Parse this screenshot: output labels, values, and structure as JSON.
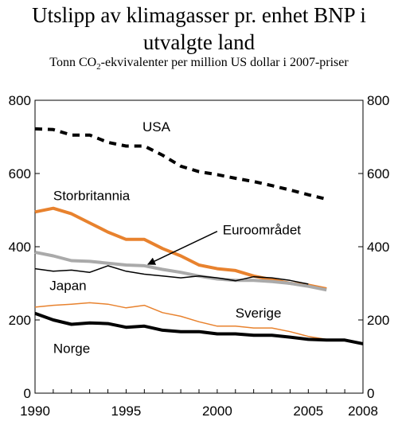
{
  "header": {
    "title_line1": "Utslipp av klimagasser pr. enhet BNP i",
    "title_line2": "utvalgte land",
    "subtitle_pre": "Tonn CO",
    "subtitle_sub": "2",
    "subtitle_post": "-ekvivalenter per million US dollar i 2007-priser"
  },
  "chart_data": {
    "type": "line",
    "ylim": [
      0,
      800
    ],
    "y_ticks": [
      0,
      200,
      400,
      600,
      800
    ],
    "xlim": [
      1990,
      2008
    ],
    "x_tick_labels": [
      {
        "value": 1990,
        "label": "1990"
      },
      {
        "value": 1995,
        "label": "1995"
      },
      {
        "value": 2000,
        "label": "2000"
      },
      {
        "value": 2005,
        "label": "2005"
      },
      {
        "value": 2008,
        "label": "2008"
      }
    ],
    "grid": false,
    "series": [
      {
        "name": "USA",
        "color": "#000000",
        "style": "dashed",
        "width": 4,
        "x": [
          1990,
          1991,
          1992,
          1993,
          1994,
          1995,
          1996,
          1997,
          1998,
          1999,
          2000,
          2001,
          2002,
          2003,
          2004,
          2005,
          2006
        ],
        "y": [
          722,
          720,
          705,
          705,
          685,
          675,
          675,
          650,
          620,
          605,
          597,
          587,
          578,
          567,
          555,
          542,
          530
        ]
      },
      {
        "name": "Storbritannia",
        "color": "#e8822e",
        "style": "solid",
        "width": 4,
        "x": [
          1990,
          1991,
          1992,
          1993,
          1994,
          1995,
          1996,
          1997,
          1998,
          1999,
          2000,
          2001,
          2002,
          2003,
          2004,
          2005,
          2006
        ],
        "y": [
          495,
          505,
          490,
          465,
          440,
          420,
          420,
          395,
          375,
          350,
          340,
          335,
          320,
          310,
          300,
          295,
          285
        ]
      },
      {
        "name": "Euroområdet",
        "color": "#aaaaaa",
        "style": "solid",
        "width": 4,
        "x": [
          1990,
          1991,
          1992,
          1993,
          1994,
          1995,
          1996,
          1997,
          1998,
          1999,
          2000,
          2001,
          2002,
          2003,
          2004,
          2005,
          2006
        ],
        "y": [
          385,
          375,
          362,
          360,
          355,
          350,
          348,
          338,
          330,
          320,
          312,
          308,
          308,
          305,
          300,
          292,
          282
        ]
      },
      {
        "name": "Japan",
        "color": "#000000",
        "style": "solid",
        "width": 1.5,
        "x": [
          1990,
          1991,
          1992,
          1993,
          1994,
          1995,
          1996,
          1997,
          1998,
          1999,
          2000,
          2001,
          2002,
          2003,
          2004,
          2005
        ],
        "y": [
          340,
          333,
          336,
          330,
          348,
          333,
          325,
          320,
          315,
          320,
          315,
          307,
          318,
          315,
          308,
          298
        ]
      },
      {
        "name": "Sverige",
        "color": "#e8822e",
        "style": "solid",
        "width": 1.5,
        "x": [
          1990,
          1991,
          1992,
          1993,
          1994,
          1995,
          1996,
          1997,
          1998,
          1999,
          2000,
          2001,
          2002,
          2003,
          2004,
          2005,
          2006
        ],
        "y": [
          235,
          240,
          243,
          247,
          243,
          233,
          240,
          220,
          210,
          195,
          183,
          183,
          178,
          178,
          168,
          155,
          147
        ]
      },
      {
        "name": "Norge",
        "color": "#000000",
        "style": "solid",
        "width": 4,
        "x": [
          1990,
          1991,
          1992,
          1993,
          1994,
          1995,
          1996,
          1997,
          1998,
          1999,
          2000,
          2001,
          2002,
          2003,
          2004,
          2005,
          2006,
          2007,
          2008
        ],
        "y": [
          218,
          200,
          188,
          192,
          190,
          180,
          183,
          172,
          168,
          168,
          162,
          162,
          158,
          158,
          153,
          147,
          145,
          145,
          135
        ]
      }
    ],
    "labels": [
      {
        "text": "USA",
        "x": 1995.9,
        "y": 715
      },
      {
        "text": "Storbritannia",
        "x": 1991.0,
        "y": 527
      },
      {
        "text": "Euroområdet",
        "x": 2000.3,
        "y": 434
      },
      {
        "text": "Japan",
        "x": 1990.8,
        "y": 282
      },
      {
        "text": "Sverige",
        "x": 2001.0,
        "y": 206
      },
      {
        "text": "Norge",
        "x": 1991.0,
        "y": 110
      }
    ],
    "arrow": {
      "from": [
        2000.0,
        442
      ],
      "to": [
        1996.2,
        352
      ]
    }
  }
}
